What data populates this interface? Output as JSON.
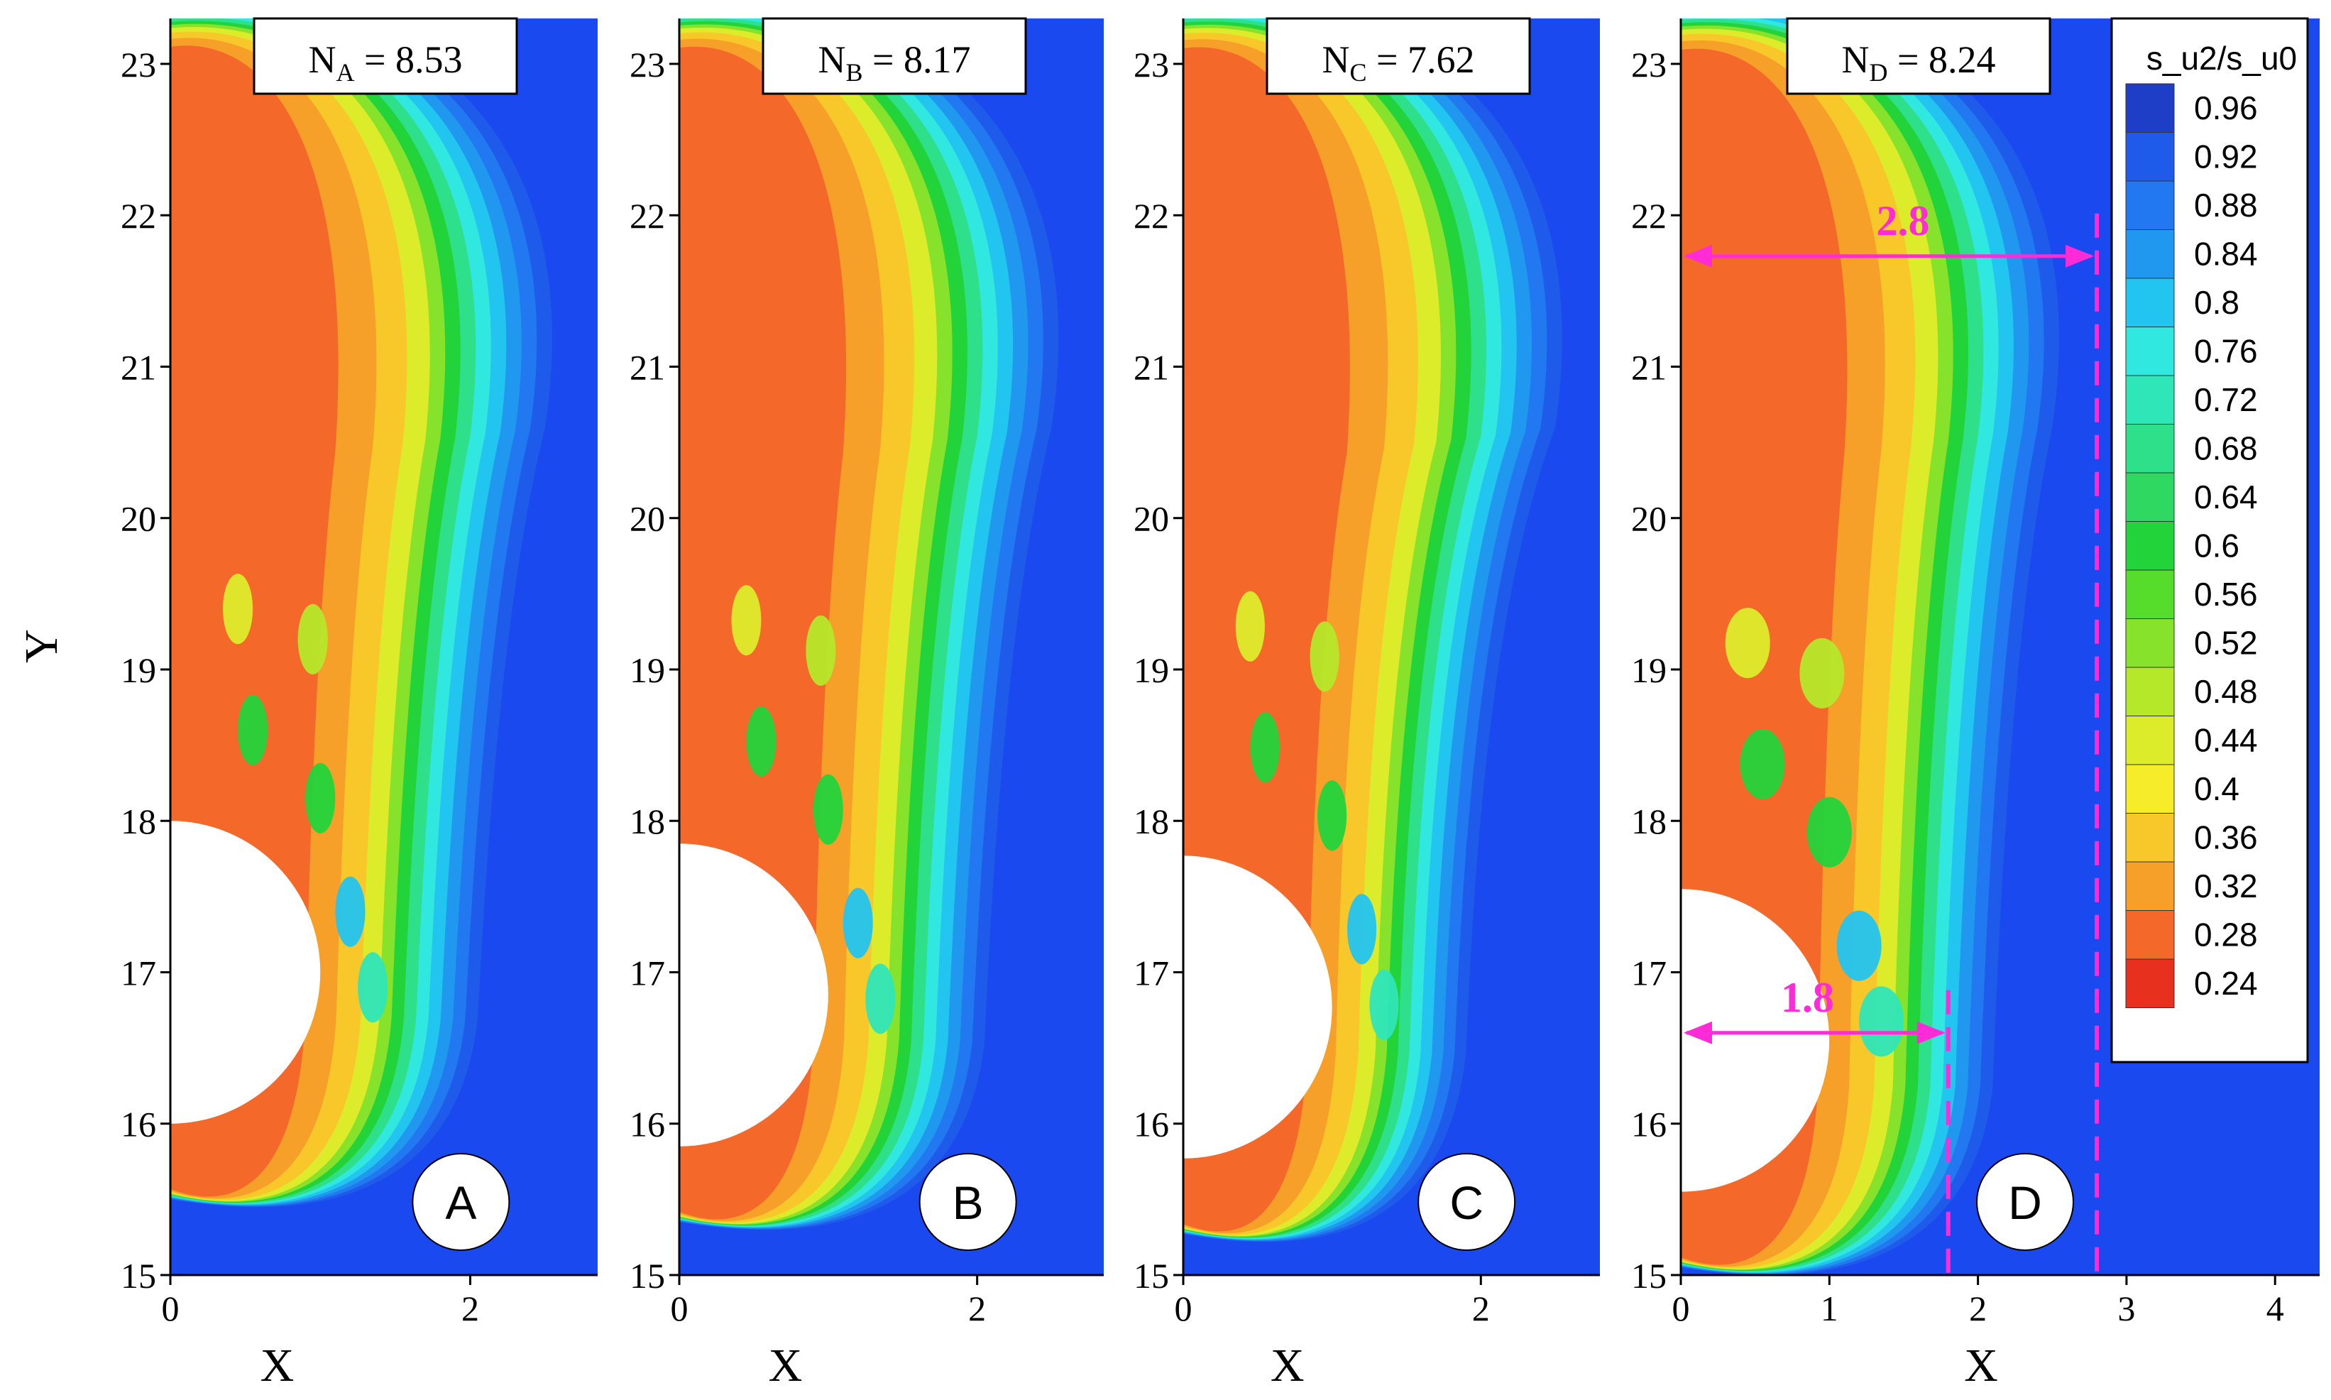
{
  "figure": {
    "x_axis_title": "X",
    "y_axis_title": "Y",
    "legend_title": "s_u2/s_u0",
    "colors": {
      "background": "#1a49f0",
      "dimension": "#ff2bd6",
      "obstacle": "#ffffff"
    }
  },
  "chart_data": [
    {
      "type": "heatmap",
      "panel": "A",
      "panel_letter": "A",
      "n_label": "N",
      "n_subscript": "A",
      "n_value": "8.53",
      "xlim": [
        0,
        2.85
      ],
      "ylim": [
        15,
        23.3
      ],
      "xticks": [
        "0",
        "2"
      ],
      "yticks": [
        "15",
        "16",
        "17",
        "18",
        "19",
        "20",
        "21",
        "22",
        "23"
      ],
      "obstacle": {
        "shape": "half-disc",
        "center": [
          0,
          17
        ],
        "radius": 1.0
      },
      "reference_lines": []
    },
    {
      "type": "heatmap",
      "panel": "B",
      "panel_letter": "B",
      "n_label": "N",
      "n_subscript": "B",
      "n_value": "8.17",
      "xlim": [
        0,
        2.85
      ],
      "ylim": [
        15,
        23.3
      ],
      "xticks": [
        "0",
        "2"
      ],
      "yticks": [
        "15",
        "16",
        "17",
        "18",
        "19",
        "20",
        "21",
        "22",
        "23"
      ],
      "obstacle": {
        "shape": "half-disc",
        "center": [
          0,
          16.85
        ],
        "radius": 1.0
      },
      "reference_lines": []
    },
    {
      "type": "heatmap",
      "panel": "C",
      "panel_letter": "C",
      "n_label": "N",
      "n_subscript": "C",
      "n_value": "7.62",
      "xlim": [
        0,
        2.8
      ],
      "ylim": [
        15,
        23.3
      ],
      "xticks": [
        "0",
        "2"
      ],
      "yticks": [
        "15",
        "16",
        "17",
        "18",
        "19",
        "20",
        "21",
        "22",
        "23"
      ],
      "obstacle": {
        "shape": "half-disc",
        "center": [
          0,
          16.77
        ],
        "radius": 1.0
      },
      "reference_lines": []
    },
    {
      "type": "heatmap",
      "panel": "D",
      "panel_letter": "D",
      "n_label": "N",
      "n_subscript": "D",
      "n_value": "8.24",
      "xlim": [
        0,
        4.3
      ],
      "ylim": [
        15,
        23.3
      ],
      "xticks": [
        "0",
        "1",
        "2",
        "3",
        "4"
      ],
      "yticks": [
        "15",
        "16",
        "17",
        "18",
        "19",
        "20",
        "21",
        "22",
        "23"
      ],
      "obstacle": {
        "shape": "half-disc",
        "center": [
          0,
          16.55
        ],
        "radius": 1.0
      },
      "reference_lines": [
        {
          "x": 1.8,
          "y": 16.6,
          "label": "1.8"
        },
        {
          "x": 2.8,
          "y": 21.73,
          "label": "2.8"
        }
      ]
    }
  ],
  "legend": {
    "labels": [
      "0.96",
      "0.92",
      "0.88",
      "0.84",
      "0.8",
      "0.76",
      "0.72",
      "0.68",
      "0.64",
      "0.6",
      "0.56",
      "0.52",
      "0.48",
      "0.44",
      "0.4",
      "0.36",
      "0.32",
      "0.28",
      "0.24"
    ],
    "colors": [
      "#1e3ec8",
      "#1f5bea",
      "#2178f0",
      "#2098f0",
      "#22c4f0",
      "#30e8e0",
      "#2fe6b8",
      "#2fe08a",
      "#2fd860",
      "#22d43a",
      "#56dc2a",
      "#86e22a",
      "#b6e82a",
      "#dcec2a",
      "#f6ec2a",
      "#f8c82a",
      "#f6a02a",
      "#f4682a",
      "#e8301e"
    ]
  }
}
